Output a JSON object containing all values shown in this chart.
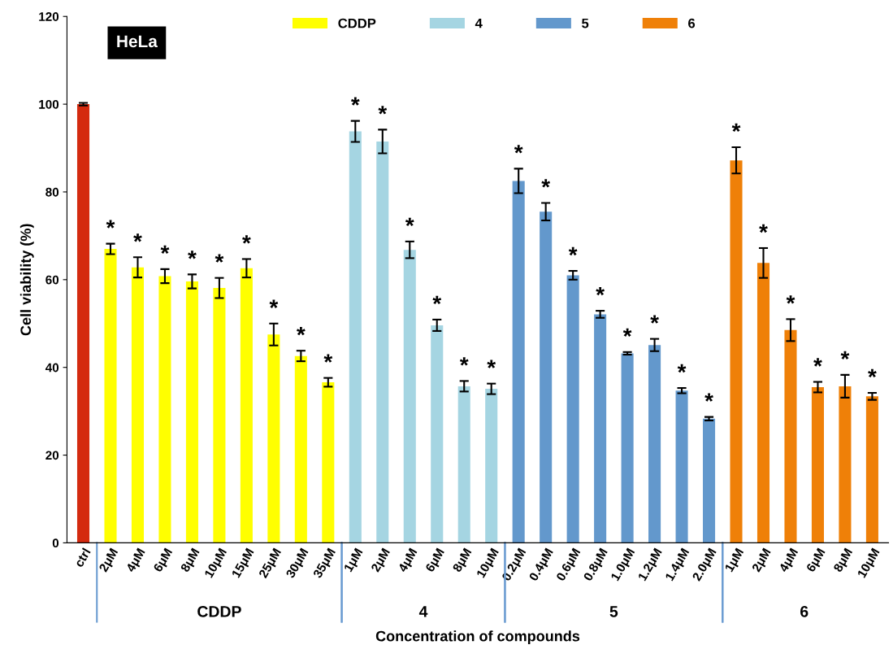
{
  "chart_data": {
    "type": "bar",
    "xlabel": "Concentration of compounds",
    "ylabel": "Cell viability (%)",
    "categories": [
      "ctrl",
      "2μM",
      "4μM",
      "6μM",
      "8μM",
      "10μM",
      "15μM",
      "25μM",
      "30μM",
      "35μM",
      "1μM",
      "2μM",
      "4μM",
      "6μM",
      "8μM",
      "10μM",
      "0.2μM",
      "0.4μM",
      "0.6μM",
      "0.8μM",
      "1.0μM",
      "1.2μM",
      "1.4μM",
      "2.0μM",
      "1μM",
      "2μM",
      "4μM",
      "6μM",
      "8μM",
      "10μM"
    ],
    "series": [
      {
        "color": "#d42a0f",
        "values": [
          100,
          null,
          null,
          null,
          null,
          null,
          null,
          null,
          null,
          null,
          null,
          null,
          null,
          null,
          null,
          null,
          null,
          null,
          null,
          null,
          null,
          null,
          null,
          null,
          null,
          null,
          null,
          null,
          null,
          null
        ],
        "errors": [
          0.3,
          null,
          null,
          null,
          null,
          null,
          null,
          null,
          null,
          null,
          null,
          null,
          null,
          null,
          null,
          null,
          null,
          null,
          null,
          null,
          null,
          null,
          null,
          null,
          null,
          null,
          null,
          null,
          null,
          null
        ],
        "value_labels": [
          null,
          null,
          null,
          null,
          null,
          null,
          null,
          null,
          null,
          null,
          null,
          null,
          null,
          null,
          null,
          null,
          null,
          null,
          null,
          null,
          null,
          null,
          null,
          null,
          null,
          null,
          null,
          null,
          null,
          null
        ]
      },
      {
        "name": "CDDP",
        "color": "#ffff00",
        "values": [
          null,
          67,
          62.8,
          60.8,
          59.6,
          58.1,
          62.6,
          47.5,
          42.6,
          36.6,
          null,
          null,
          null,
          null,
          null,
          null,
          null,
          null,
          null,
          null,
          null,
          null,
          null,
          null,
          null,
          null,
          null,
          null,
          null,
          null
        ],
        "errors": [
          null,
          1.2,
          2.3,
          1.6,
          1.6,
          2.3,
          2.1,
          2.5,
          1.2,
          1.0,
          null,
          null,
          null,
          null,
          null,
          null,
          null,
          null,
          null,
          null,
          null,
          null,
          null,
          null,
          null,
          null,
          null,
          null,
          null,
          null
        ],
        "value_labels": [
          null,
          "*",
          "*",
          "*",
          "*",
          "*",
          "*",
          "*",
          "*",
          "*",
          null,
          null,
          null,
          null,
          null,
          null,
          null,
          null,
          null,
          null,
          null,
          null,
          null,
          null,
          null,
          null,
          null,
          null,
          null,
          null
        ]
      },
      {
        "name": "4",
        "color": "#a5d5e2",
        "values": [
          null,
          null,
          null,
          null,
          null,
          null,
          null,
          null,
          null,
          null,
          93.8,
          91.5,
          66.8,
          49.6,
          35.7,
          35.1,
          null,
          null,
          null,
          null,
          null,
          null,
          null,
          null,
          null,
          null,
          null,
          null,
          null,
          null
        ],
        "errors": [
          null,
          null,
          null,
          null,
          null,
          null,
          null,
          null,
          null,
          null,
          2.4,
          2.7,
          1.9,
          1.3,
          1.2,
          1.2,
          null,
          null,
          null,
          null,
          null,
          null,
          null,
          null,
          null,
          null,
          null,
          null,
          null,
          null
        ],
        "value_labels": [
          null,
          null,
          null,
          null,
          null,
          null,
          null,
          null,
          null,
          null,
          "*",
          "*",
          "*",
          "*",
          "*",
          "*",
          null,
          null,
          null,
          null,
          null,
          null,
          null,
          null,
          null,
          null,
          null,
          null,
          null,
          null
        ]
      },
      {
        "name": "5",
        "color": "#6398cc",
        "values": [
          null,
          null,
          null,
          null,
          null,
          null,
          null,
          null,
          null,
          null,
          null,
          null,
          null,
          null,
          null,
          null,
          82.5,
          75.5,
          61,
          52.1,
          43.2,
          45.1,
          34.7,
          28.3,
          null,
          null,
          null,
          null,
          null,
          null
        ],
        "errors": [
          null,
          null,
          null,
          null,
          null,
          null,
          null,
          null,
          null,
          null,
          null,
          null,
          null,
          null,
          null,
          null,
          2.8,
          2.0,
          1.0,
          0.8,
          0.3,
          1.4,
          0.6,
          0.4,
          null,
          null,
          null,
          null,
          null,
          null
        ],
        "value_labels": [
          null,
          null,
          null,
          null,
          null,
          null,
          null,
          null,
          null,
          null,
          null,
          null,
          null,
          null,
          null,
          null,
          "*",
          "*",
          "*",
          "*",
          "*",
          "*",
          "*",
          "*",
          null,
          null,
          null,
          null,
          null,
          null
        ]
      },
      {
        "name": "6",
        "color": "#ef8008",
        "values": [
          null,
          null,
          null,
          null,
          null,
          null,
          null,
          null,
          null,
          null,
          null,
          null,
          null,
          null,
          null,
          null,
          null,
          null,
          null,
          null,
          null,
          null,
          null,
          null,
          87.2,
          63.8,
          48.5,
          35.5,
          35.7,
          33.4
        ],
        "errors": [
          null,
          null,
          null,
          null,
          null,
          null,
          null,
          null,
          null,
          null,
          null,
          null,
          null,
          null,
          null,
          null,
          null,
          null,
          null,
          null,
          null,
          null,
          null,
          null,
          3.0,
          3.4,
          2.5,
          1.2,
          2.6,
          0.8
        ],
        "value_labels": [
          null,
          null,
          null,
          null,
          null,
          null,
          null,
          null,
          null,
          null,
          null,
          null,
          null,
          null,
          null,
          null,
          null,
          null,
          null,
          null,
          null,
          null,
          null,
          null,
          "*",
          "*",
          "*",
          "*",
          "*",
          "*"
        ]
      }
    ],
    "annotations": [
      "HeLa",
      "CDDP",
      "4",
      "5",
      "6"
    ],
    "ylim": [
      0,
      120
    ],
    "yticks": [
      0,
      20,
      40,
      60,
      80,
      100,
      120
    ],
    "grid": false,
    "legend": "top"
  }
}
